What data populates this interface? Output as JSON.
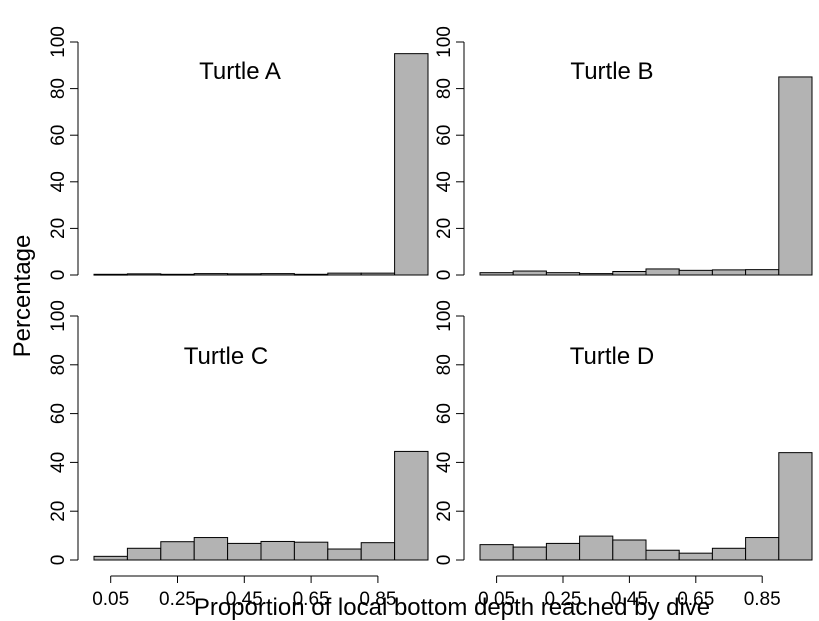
{
  "chart_data": {
    "type": "bar",
    "ylabel": "Percentage",
    "xlabel": "Proportion of local bottom depth reached by dive",
    "ylim": [
      0,
      100
    ],
    "yticks": [
      0,
      20,
      40,
      60,
      80,
      100
    ],
    "x_tick_labels": [
      "0.05",
      "0.25",
      "0.45",
      "0.65",
      "0.85"
    ],
    "bar_color": "#b3b3b3",
    "panels": [
      {
        "title": "Turtle A",
        "bin_centers": [
          0.05,
          0.15,
          0.25,
          0.35,
          0.45,
          0.55,
          0.65,
          0.75,
          0.85,
          0.95
        ],
        "values": [
          0.3,
          0.5,
          0.3,
          0.6,
          0.5,
          0.6,
          0.3,
          0.8,
          0.8,
          95
        ]
      },
      {
        "title": "Turtle B",
        "bin_centers": [
          0.05,
          0.15,
          0.25,
          0.35,
          0.45,
          0.55,
          0.65,
          0.75,
          0.85,
          0.95
        ],
        "values": [
          1.0,
          1.7,
          1.0,
          0.6,
          1.5,
          2.6,
          2.0,
          2.2,
          2.3,
          85
        ]
      },
      {
        "title": "Turtle C",
        "bin_centers": [
          0.05,
          0.15,
          0.25,
          0.35,
          0.45,
          0.55,
          0.65,
          0.75,
          0.85,
          0.95
        ],
        "values": [
          1.5,
          4.8,
          7.5,
          9.2,
          6.8,
          7.6,
          7.3,
          4.5,
          7.1,
          44.5
        ]
      },
      {
        "title": "Turtle D",
        "bin_centers": [
          0.05,
          0.15,
          0.25,
          0.35,
          0.45,
          0.55,
          0.65,
          0.75,
          0.85,
          0.95
        ],
        "values": [
          6.3,
          5.3,
          6.8,
          9.8,
          8.2,
          4.0,
          2.8,
          4.8,
          9.2,
          44
        ]
      }
    ]
  }
}
